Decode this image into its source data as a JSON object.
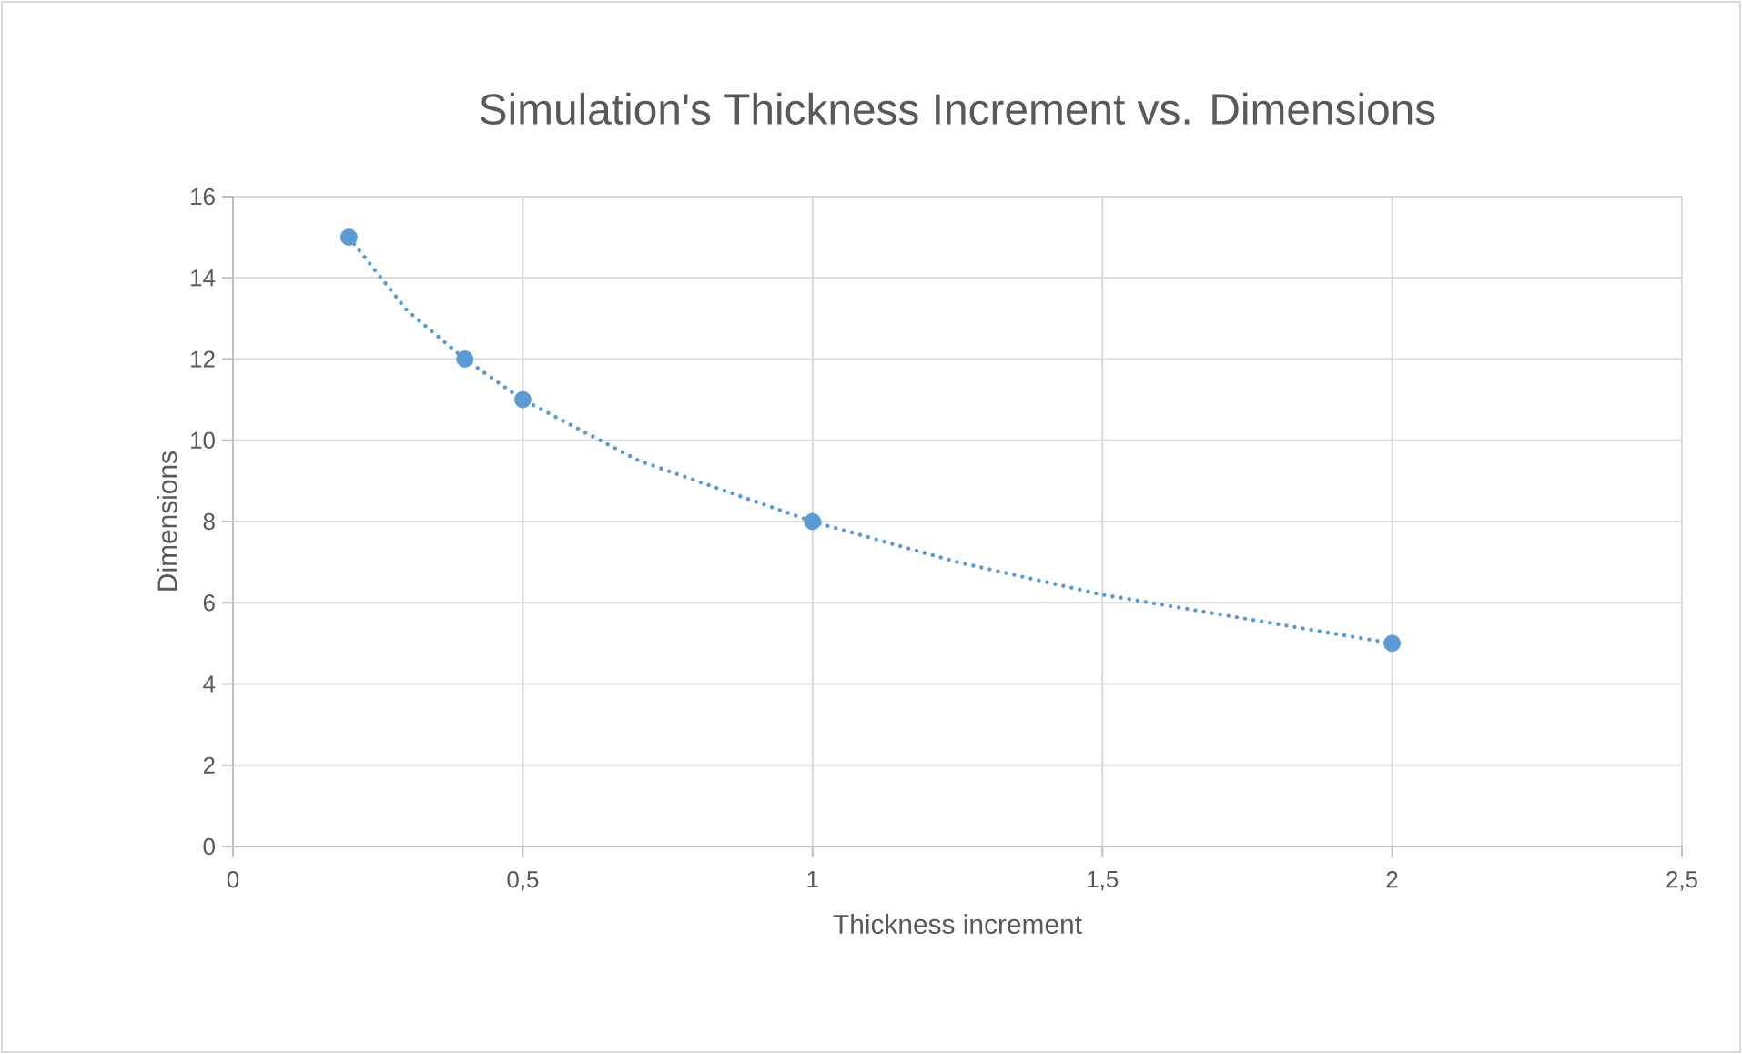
{
  "chart_data": {
    "type": "scatter",
    "title": "Simulation's Thickness Increment  vs. Dimensions",
    "xlabel": "Thickness increment",
    "ylabel": "Dimensions",
    "xlim": [
      0,
      2.5
    ],
    "xticks": [
      0,
      {
        "value": 0.5,
        "label": "0,5"
      },
      1,
      {
        "value": 1.5,
        "label": "1,5"
      },
      2,
      {
        "value": 2.5,
        "label": "2,5"
      }
    ],
    "ylim": [
      0,
      16
    ],
    "yticks": [
      0,
      2,
      4,
      6,
      8,
      10,
      12,
      14,
      16
    ],
    "grid": true,
    "series": [
      {
        "type": "line",
        "color": "#5b9bd5",
        "line_style": "dotted",
        "marker": "none",
        "x": [
          0.2,
          0.3,
          0.4,
          0.5,
          0.7,
          1,
          1.25,
          1.5,
          1.75,
          2
        ],
        "values": [
          15,
          13.2,
          12,
          11,
          9.5,
          8,
          7,
          6.2,
          5.6,
          5
        ]
      },
      {
        "color": "#5b9bd5",
        "marker": "circle",
        "x": [
          0.2,
          0.4,
          0.5,
          1,
          2
        ],
        "values": [
          15,
          12,
          11,
          8,
          5
        ]
      }
    ]
  }
}
